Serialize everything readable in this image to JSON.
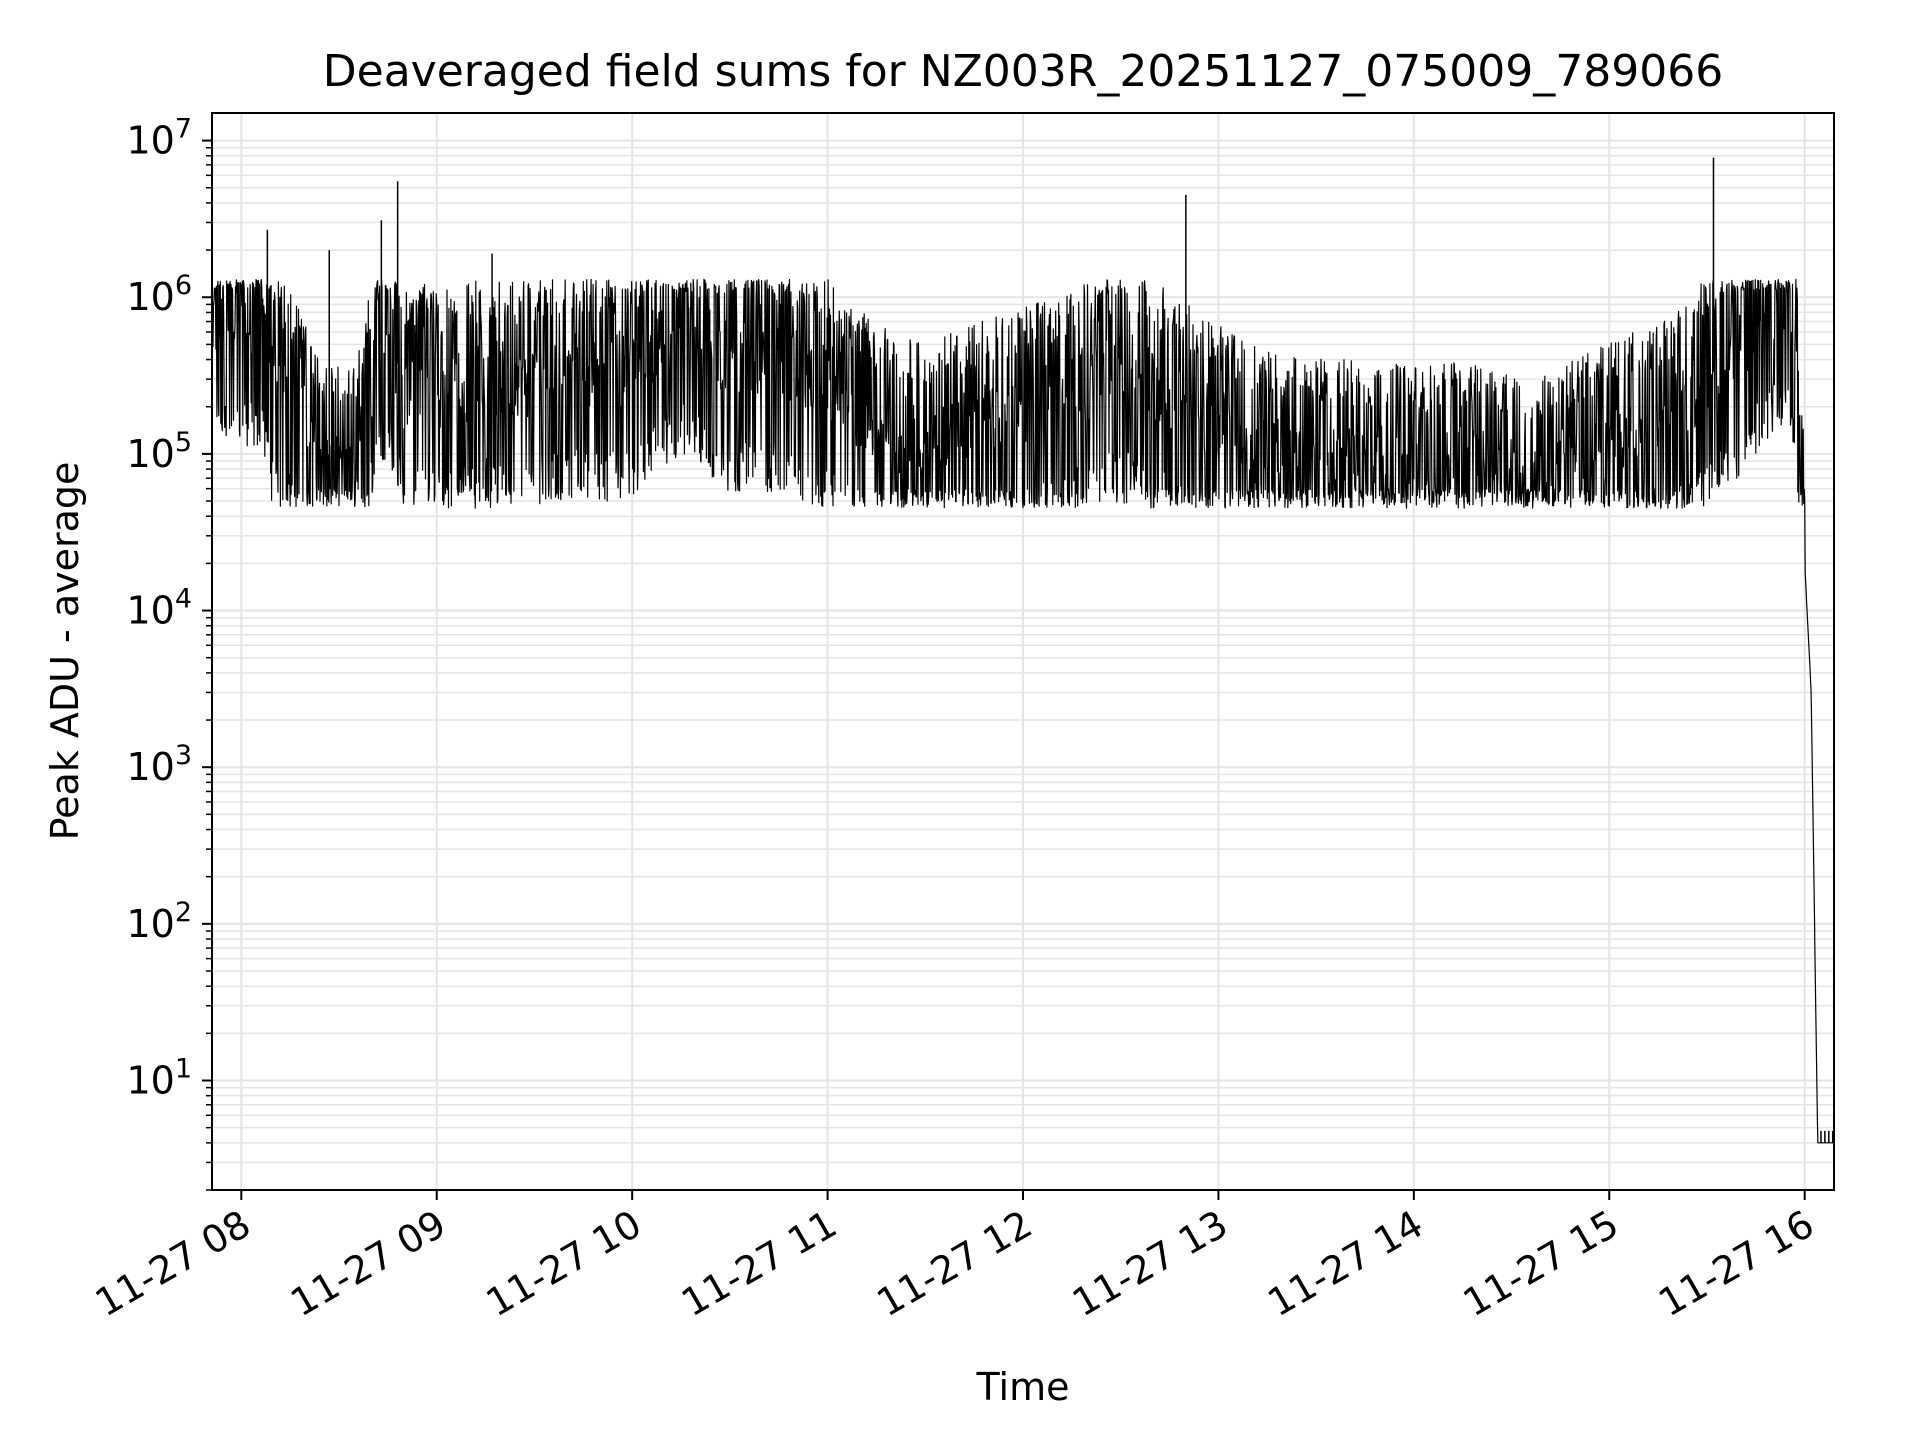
{
  "chart_data": {
    "type": "line",
    "title": "Deaveraged field sums for NZ003R_20251127_075009_789066",
    "xlabel": "Time",
    "ylabel": "Peak ADU - average",
    "yscale": "log",
    "ylim": [
      2,
      15000000
    ],
    "xlim": [
      "11-27 07:51",
      "11-27 16:09"
    ],
    "grid": true,
    "line_color": "#000000",
    "grid_color": "#e5e5e5",
    "x_ticks": [
      {
        "time": "11-27 08:00",
        "label": "11-27 08"
      },
      {
        "time": "11-27 09:00",
        "label": "11-27 09"
      },
      {
        "time": "11-27 10:00",
        "label": "11-27 10"
      },
      {
        "time": "11-27 11:00",
        "label": "11-27 11"
      },
      {
        "time": "11-27 12:00",
        "label": "11-27 12"
      },
      {
        "time": "11-27 13:00",
        "label": "11-27 13"
      },
      {
        "time": "11-27 14:00",
        "label": "11-27 14"
      },
      {
        "time": "11-27 15:00",
        "label": "11-27 15"
      },
      {
        "time": "11-27 16:00",
        "label": "11-27 16"
      }
    ],
    "y_ticks": [
      {
        "value": 10,
        "base": "10",
        "exp": "1"
      },
      {
        "value": 100,
        "base": "10",
        "exp": "2"
      },
      {
        "value": 1000,
        "base": "10",
        "exp": "3"
      },
      {
        "value": 10000,
        "base": "10",
        "exp": "4"
      },
      {
        "value": 100000,
        "base": "10",
        "exp": "5"
      },
      {
        "value": 1000000,
        "base": "10",
        "exp": "6"
      },
      {
        "value": 10000000,
        "base": "10",
        "exp": "7"
      }
    ],
    "series": [
      {
        "x": [
          "11-27 07:51",
          "11-27 07:55",
          "11-27 08:00",
          "11-27 08:06",
          "11-27 08:10",
          "11-27 08:15",
          "11-27 08:20",
          "11-27 08:25",
          "11-27 08:30",
          "11-27 08:35",
          "11-27 08:40",
          "11-27 08:45",
          "11-27 08:50",
          "11-27 08:55",
          "11-27 09:00",
          "11-27 09:15",
          "11-27 09:30",
          "11-27 09:45",
          "11-27 10:00",
          "11-27 10:15",
          "11-27 10:30",
          "11-27 10:45",
          "11-27 11:00",
          "11-27 11:15",
          "11-27 11:30",
          "11-27 11:45",
          "11-27 12:00",
          "11-27 12:15",
          "11-27 12:30",
          "11-27 12:45",
          "11-27 13:00",
          "11-27 13:15",
          "11-27 13:30",
          "11-27 13:45",
          "11-27 14:00",
          "11-27 14:15",
          "11-27 14:30",
          "11-27 14:45",
          "11-27 15:00",
          "11-27 15:15",
          "11-27 15:30",
          "11-27 15:40",
          "11-27 15:47",
          "11-27 15:52",
          "11-27 15:57",
          "11-27 16:00",
          "11-27 16:02",
          "11-27 16:04",
          "11-27 16:09"
        ],
        "y": [
          700000,
          800000,
          700000,
          800000,
          300000,
          250000,
          150000,
          90000,
          80000,
          80000,
          300000,
          700000,
          250000,
          300000,
          250000,
          300000,
          300000,
          350000,
          350000,
          700000,
          400000,
          400000,
          300000,
          150000,
          120000,
          150000,
          200000,
          250000,
          350000,
          250000,
          150000,
          100000,
          90000,
          90000,
          80000,
          90000,
          70000,
          80000,
          120000,
          150000,
          300000,
          500000,
          800000,
          1000000,
          700000,
          20000,
          3000,
          4,
          4
        ],
        "spikes": [
          {
            "x": "11-27 08:08",
            "y": 2700000
          },
          {
            "x": "11-27 08:27",
            "y": 2000000
          },
          {
            "x": "11-27 08:43",
            "y": 3100000
          },
          {
            "x": "11-27 08:48",
            "y": 5500000
          },
          {
            "x": "11-27 09:17",
            "y": 1900000
          },
          {
            "x": "11-27 12:50",
            "y": 4500000
          },
          {
            "x": "11-27 15:32",
            "y": 7800000
          }
        ]
      }
    ]
  }
}
